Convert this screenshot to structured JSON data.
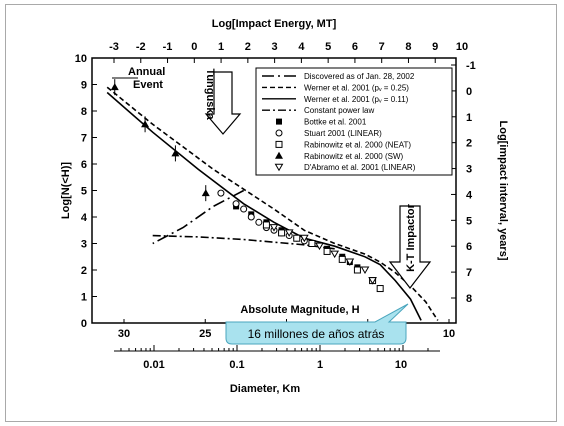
{
  "chart_data": {
    "type": "line",
    "top_axis_title": "Log[Impact Energy, MT]",
    "top_ticks": [
      "-3",
      "-2",
      "-1",
      "0",
      "1",
      "2",
      "3",
      "4",
      "5",
      "6",
      "7",
      "8",
      "9",
      "10"
    ],
    "left_axis_title": "Log[N(<H)]",
    "left_ticks": [
      "0",
      "1",
      "2",
      "3",
      "4",
      "5",
      "6",
      "7",
      "8",
      "9",
      "10"
    ],
    "right_axis_title": "Log[impact interval, years]",
    "right_ticks": [
      "-1",
      "0",
      "1",
      "2",
      "3",
      "4",
      "5",
      "6",
      "7",
      "8"
    ],
    "h_axis_title": "Absolute Magnitude, H",
    "h_ticks": [
      "30",
      "25",
      "20",
      "15",
      "10"
    ],
    "d_axis_title": "Diameter, Km",
    "d_ticks": [
      "0.01",
      "0.1",
      "1",
      "10"
    ],
    "xlim_H": [
      32,
      8
    ],
    "ylim": [
      0,
      10
    ],
    "annotations": {
      "annual_event": "Annual\nEvent",
      "tunguska": "Tunguska",
      "kt_impactor": "K-T Impactor"
    },
    "legend": [
      {
        "label": "Discovered as of Jan. 28, 2002",
        "marker": "dash-dot-long"
      },
      {
        "label": "Werner et al. 2001 (pᵥ = 0.25)",
        "marker": "dashed"
      },
      {
        "label": "Werner et al. 2001 (pᵥ = 0.11)",
        "marker": "solid"
      },
      {
        "label": "Constant power law",
        "marker": "dash-dot"
      },
      {
        "label": "Bottke et al. 2001",
        "marker": "filled-square"
      },
      {
        "label": "Stuart 2001 (LINEAR)",
        "marker": "open-circle"
      },
      {
        "label": "Rabinowitz et al. 2000 (NEAT)",
        "marker": "open-square"
      },
      {
        "label": "Rabinowitz et al. 2000 (SW)",
        "marker": "filled-triangle"
      },
      {
        "label": "D'Abramo et al. 2001 (LINEAR)",
        "marker": "open-triangle-down"
      }
    ],
    "series": [
      {
        "name": "Discovered as of Jan. 28, 2002",
        "H": [
          22,
          24,
          26,
          28
        ],
        "logN": [
          5.0,
          4.4,
          3.6,
          3.0
        ]
      },
      {
        "name": "Werner et al. 2001 (pᵥ = 0.25)",
        "H": [
          31,
          28,
          24,
          20,
          18,
          16,
          14,
          13,
          12,
          11,
          10,
          9.2
        ],
        "logN": [
          8.9,
          7.5,
          5.8,
          4.3,
          3.5,
          3.0,
          2.6,
          2.3,
          1.9,
          1.4,
          0.8,
          0.1
        ]
      },
      {
        "name": "Werner et al. 2001 (pᵥ = 0.11)",
        "H": [
          31,
          28,
          25,
          22,
          20,
          18,
          16,
          14,
          13,
          12,
          11,
          10.3
        ],
        "logN": [
          8.7,
          7.2,
          5.8,
          4.5,
          3.8,
          3.2,
          2.9,
          2.5,
          2.2,
          1.6,
          0.9,
          0.1
        ]
      },
      {
        "name": "Constant power law",
        "H": [
          28,
          25,
          22,
          20,
          18,
          16
        ],
        "logN": [
          3.3,
          3.25,
          3.15,
          3.05,
          2.95,
          2.8
        ]
      },
      {
        "name": "Bottke et al. 2001",
        "H": [
          22.5,
          21.5,
          20.5,
          19.5,
          18.5,
          17.5,
          16.5,
          15.5,
          15.0,
          14.5
        ],
        "logN": [
          4.4,
          4.1,
          3.8,
          3.5,
          3.2,
          3.0,
          2.8,
          2.5,
          2.3,
          2.1
        ]
      },
      {
        "name": "Stuart 2001 (LINEAR)",
        "H": [
          23.5,
          22.5,
          22,
          21.5,
          21,
          20.5,
          20,
          19.5,
          19,
          18.5,
          18,
          17.5
        ],
        "logN": [
          4.9,
          4.5,
          4.3,
          4.0,
          3.8,
          3.6,
          3.5,
          3.4,
          3.3,
          3.2,
          3.1,
          3.0
        ]
      },
      {
        "name": "Rabinowitz et al. 2000 (NEAT)",
        "H": [
          20.5,
          19.5,
          18.5,
          17.5,
          16.5,
          15.5,
          14.5,
          13.5,
          13
        ],
        "logN": [
          3.7,
          3.4,
          3.2,
          3.0,
          2.7,
          2.4,
          2.0,
          1.6,
          1.3
        ]
      },
      {
        "name": "Rabinowitz et al. 2000 (SW)",
        "H": [
          30.5,
          28.5,
          26.5,
          24.5
        ],
        "logN": [
          8.9,
          7.5,
          6.4,
          4.9
        ]
      },
      {
        "name": "D'Abramo et al. 2001 (LINEAR)",
        "H": [
          20,
          19,
          18,
          17,
          16,
          15,
          14,
          13.5
        ],
        "logN": [
          3.6,
          3.4,
          3.2,
          2.9,
          2.6,
          2.3,
          2.0,
          1.6
        ]
      }
    ]
  },
  "callout": {
    "text": "16 millones de años atrás"
  },
  "colors": {
    "callout_bg": "#a9e2ee",
    "callout_border": "#4aa5bd"
  }
}
